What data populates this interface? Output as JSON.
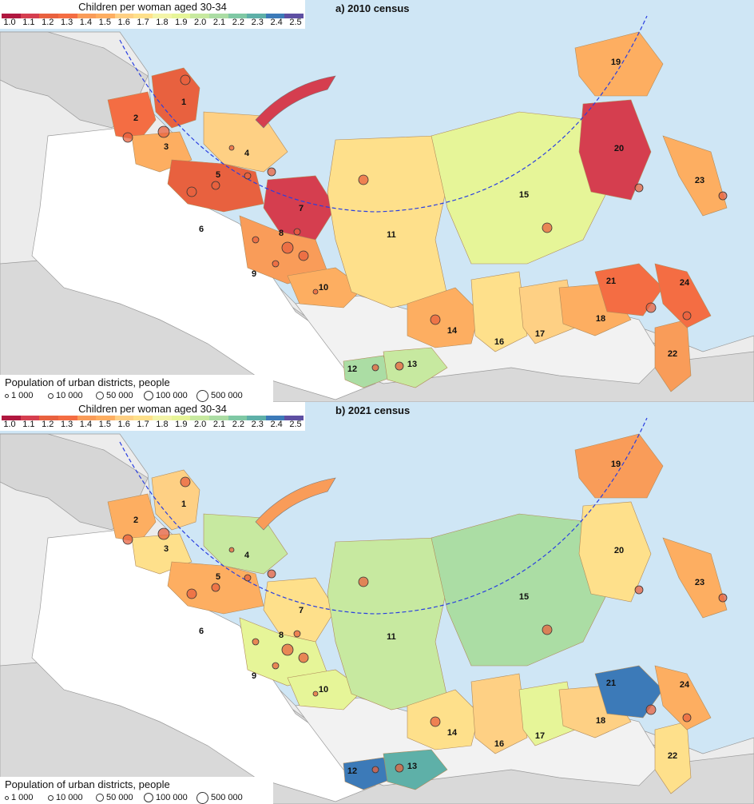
{
  "colorbar": {
    "title": "Children per woman aged 30-34",
    "ticks": [
      "1.0",
      "1.1",
      "1.2",
      "1.3",
      "1.4",
      "1.5",
      "1.6",
      "1.7",
      "1.8",
      "1.9",
      "2.0",
      "2.1",
      "2.2",
      "2.3",
      "2.4",
      "2.5"
    ],
    "colors": [
      "#b0173f",
      "#d53e4f",
      "#e8613f",
      "#f46d43",
      "#f99c59",
      "#fdae61",
      "#fed084",
      "#fee08b",
      "#f3f4a8",
      "#e6f598",
      "#c7e9a0",
      "#abdda4",
      "#7fc8a4",
      "#5eb0a8",
      "#3c7ab8",
      "#5e4fa2"
    ]
  },
  "size_legend": {
    "title": "Population of urban districts, people",
    "items": [
      "1 000",
      "10 000",
      "50 000",
      "100 000",
      "500 000"
    ]
  },
  "region_numbers": [
    "1",
    "2",
    "3",
    "4",
    "5",
    "6",
    "7",
    "8",
    "9",
    "10",
    "11",
    "12",
    "13",
    "14",
    "15",
    "16",
    "17",
    "18",
    "19",
    "20",
    "21",
    "22",
    "23",
    "24"
  ],
  "panels": [
    {
      "title": "a) 2010 census",
      "region_colors": {
        "1": "#e8613f",
        "2": "#f46d43",
        "3": "#fdae61",
        "4": "#fed084",
        "5": "#e8613f",
        "7": "#d53e4f",
        "8": "#f99c59",
        "10": "#fdae61",
        "11": "#fee08b",
        "12": "#abdda4",
        "13": "#c7e9a0",
        "14": "#fdae61",
        "15": "#e6f598",
        "16": "#fee08b",
        "17": "#fed084",
        "18": "#fdae61",
        "19": "#fdae61",
        "20": "#d53e4f",
        "21": "#f46d43",
        "22": "#f99c59",
        "23": "#fdae61",
        "24": "#f46d43"
      }
    },
    {
      "title": "b) 2021 census",
      "region_colors": {
        "1": "#fed084",
        "2": "#fdae61",
        "3": "#fee08b",
        "4": "#c7e9a0",
        "5": "#fdae61",
        "7": "#fee08b",
        "8": "#e6f598",
        "10": "#e6f598",
        "11": "#c7e9a0",
        "12": "#3c7ab8",
        "13": "#5eb0a8",
        "14": "#fee08b",
        "15": "#abdda4",
        "16": "#fed084",
        "17": "#e6f598",
        "18": "#fed084",
        "19": "#f99c59",
        "20": "#fee08b",
        "21": "#3c7ab8",
        "22": "#fee08b",
        "23": "#fdae61",
        "24": "#fdae61"
      }
    }
  ]
}
